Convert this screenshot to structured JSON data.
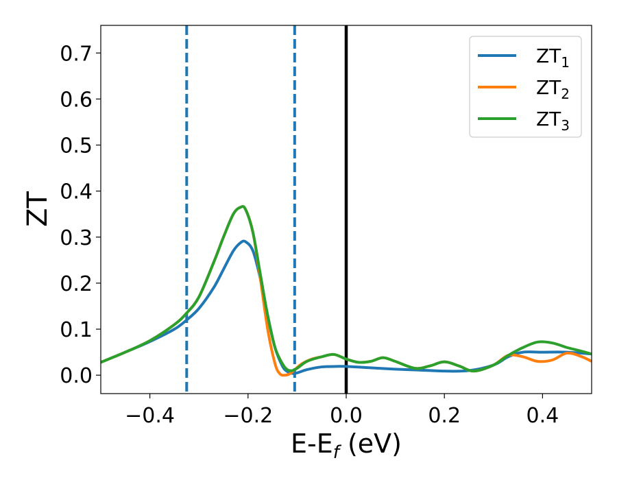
{
  "chart_data": {
    "type": "line",
    "xlabel": {
      "base": "E-E",
      "sub": "f",
      "tail": " (eV)"
    },
    "ylabel": "ZT",
    "xlim": [
      -0.5,
      0.5
    ],
    "ylim": [
      -0.04,
      0.76
    ],
    "xticks": [
      -0.4,
      -0.2,
      0.0,
      0.2,
      0.4
    ],
    "xtick_labels": [
      "−0.4",
      "−0.2",
      "0.0",
      "0.2",
      "0.4"
    ],
    "yticks": [
      0.0,
      0.1,
      0.2,
      0.3,
      0.4,
      0.5,
      0.6,
      0.7
    ],
    "ytick_labels": [
      "0.0",
      "0.1",
      "0.2",
      "0.3",
      "0.4",
      "0.5",
      "0.6",
      "0.7"
    ],
    "legend_position": "top-right",
    "vlines": [
      {
        "x": -0.325,
        "style": "dashed",
        "color": "#1f77b4"
      },
      {
        "x": -0.105,
        "style": "dashed",
        "color": "#1f77b4"
      },
      {
        "x": 0.0,
        "style": "solid",
        "color": "#000000"
      }
    ],
    "series": [
      {
        "name": "ZT",
        "sub": "1",
        "color": "#1f77b4",
        "x": [
          -0.5,
          -0.45,
          -0.4,
          -0.35,
          -0.325,
          -0.3,
          -0.27,
          -0.25,
          -0.23,
          -0.215,
          -0.205,
          -0.19,
          -0.175,
          -0.16,
          -0.145,
          -0.13,
          -0.12,
          -0.11,
          -0.1,
          -0.08,
          -0.05,
          -0.02,
          0.0,
          0.05,
          0.1,
          0.15,
          0.2,
          0.25,
          0.3,
          0.33,
          0.36,
          0.4,
          0.45,
          0.5
        ],
        "y": [
          0.028,
          0.05,
          0.073,
          0.1,
          0.12,
          0.145,
          0.19,
          0.23,
          0.27,
          0.288,
          0.29,
          0.27,
          0.21,
          0.13,
          0.06,
          0.02,
          0.008,
          0.004,
          0.005,
          0.012,
          0.018,
          0.019,
          0.019,
          0.016,
          0.013,
          0.011,
          0.009,
          0.01,
          0.022,
          0.04,
          0.05,
          0.05,
          0.05,
          0.046
        ]
      },
      {
        "name": "ZT",
        "sub": "2",
        "color": "#ff7f0e",
        "x": [
          -0.5,
          -0.45,
          -0.4,
          -0.35,
          -0.325,
          -0.3,
          -0.27,
          -0.25,
          -0.23,
          -0.215,
          -0.205,
          -0.19,
          -0.175,
          -0.16,
          -0.145,
          -0.135,
          -0.125,
          -0.115,
          -0.105,
          -0.09,
          -0.07,
          -0.05,
          -0.025,
          0.0,
          0.025,
          0.05,
          0.075,
          0.1,
          0.14,
          0.17,
          0.2,
          0.23,
          0.26,
          0.3,
          0.33,
          0.36,
          0.39,
          0.42,
          0.45,
          0.48,
          0.5
        ],
        "y": [
          0.028,
          0.05,
          0.075,
          0.11,
          0.135,
          0.17,
          0.245,
          0.3,
          0.35,
          0.365,
          0.36,
          0.31,
          0.21,
          0.1,
          0.025,
          0.003,
          0.0,
          0.003,
          0.012,
          0.025,
          0.035,
          0.04,
          0.045,
          0.035,
          0.028,
          0.03,
          0.038,
          0.03,
          0.015,
          0.02,
          0.029,
          0.02,
          0.009,
          0.022,
          0.043,
          0.04,
          0.03,
          0.033,
          0.048,
          0.04,
          0.03
        ]
      },
      {
        "name": "ZT",
        "sub": "3",
        "color": "#2ca02c",
        "x": [
          -0.5,
          -0.45,
          -0.4,
          -0.35,
          -0.325,
          -0.3,
          -0.27,
          -0.25,
          -0.23,
          -0.215,
          -0.205,
          -0.19,
          -0.175,
          -0.16,
          -0.145,
          -0.13,
          -0.12,
          -0.11,
          -0.1,
          -0.08,
          -0.05,
          -0.025,
          0.0,
          0.025,
          0.05,
          0.075,
          0.1,
          0.14,
          0.17,
          0.2,
          0.23,
          0.26,
          0.3,
          0.33,
          0.36,
          0.39,
          0.42,
          0.45,
          0.48,
          0.5
        ],
        "y": [
          0.028,
          0.05,
          0.075,
          0.11,
          0.135,
          0.17,
          0.245,
          0.3,
          0.35,
          0.365,
          0.36,
          0.31,
          0.22,
          0.13,
          0.06,
          0.025,
          0.012,
          0.01,
          0.015,
          0.03,
          0.04,
          0.045,
          0.035,
          0.028,
          0.03,
          0.038,
          0.03,
          0.015,
          0.02,
          0.029,
          0.02,
          0.009,
          0.022,
          0.043,
          0.06,
          0.072,
          0.07,
          0.06,
          0.052,
          0.046
        ]
      }
    ]
  }
}
